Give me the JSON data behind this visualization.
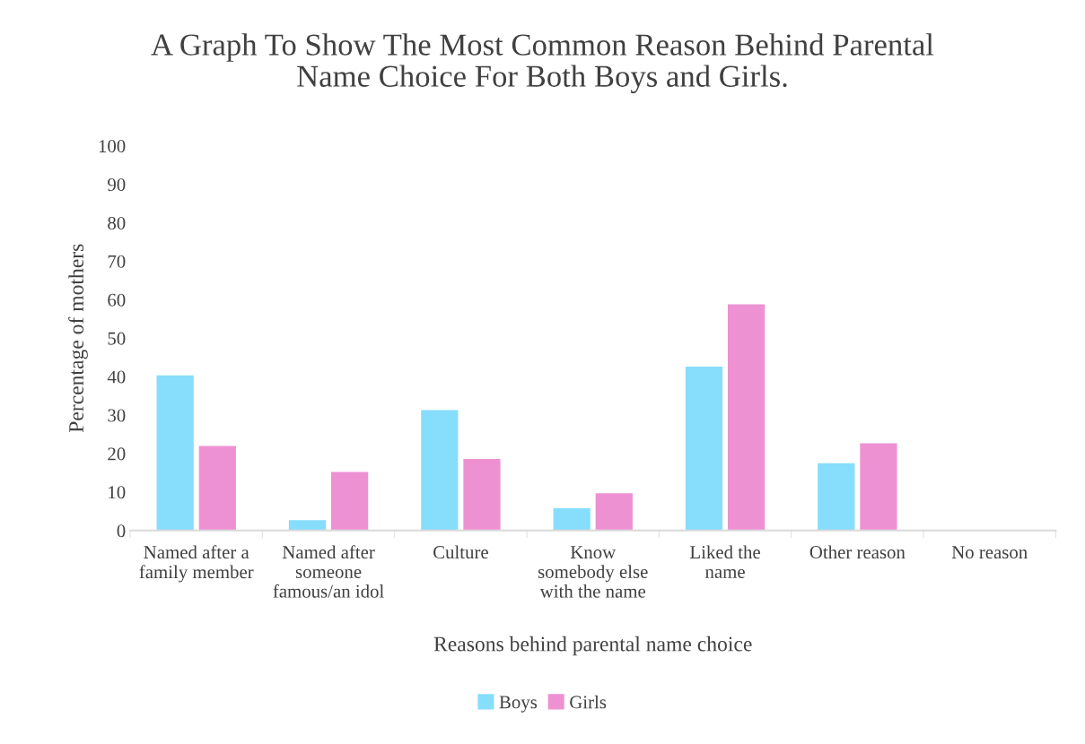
{
  "chart_data": {
    "type": "bar",
    "title": "A Graph To Show The Most Common Reason Behind Parental\nName Choice For Both Boys and Girls.",
    "xlabel": "Reasons behind parental name choice",
    "ylabel": "Percentage of mothers",
    "categories": [
      "Named after a\nfamily member",
      "Named after\nsomeone\nfamous/an idol",
      "Culture",
      "Know\nsomebody else\nwith the name",
      "Liked the\nname",
      "Other reason",
      "No reason"
    ],
    "series": [
      {
        "name": "Boys",
        "color": "#87ddfc",
        "values": [
          40.3,
          2.7,
          31.3,
          5.8,
          42.6,
          17.5,
          0
        ]
      },
      {
        "name": "Girls",
        "color": "#ee91d3",
        "values": [
          22.0,
          15.2,
          18.6,
          9.7,
          58.8,
          22.7,
          0
        ]
      }
    ],
    "ylim": [
      0,
      100
    ],
    "yticks": [
      0,
      10,
      20,
      30,
      40,
      50,
      60,
      70,
      80,
      90,
      100
    ],
    "grid": false,
    "legend": "bottom"
  }
}
